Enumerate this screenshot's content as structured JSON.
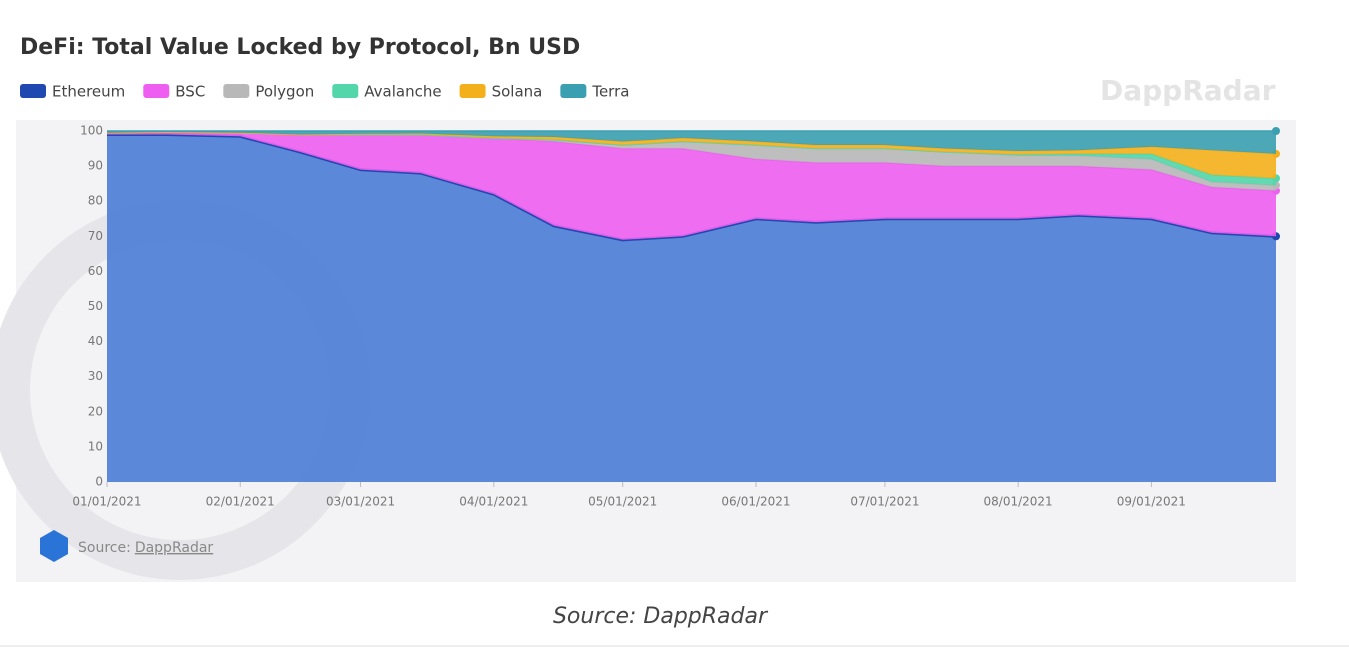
{
  "chart_data": {
    "type": "stacked_area",
    "title": "DeFi: Total Value Locked by Protocol, Bn USD",
    "x": [
      "01/01/2021",
      "01/15/2021",
      "02/01/2021",
      "02/15/2021",
      "03/01/2021",
      "03/15/2021",
      "04/01/2021",
      "04/15/2021",
      "05/01/2021",
      "05/15/2021",
      "06/01/2021",
      "06/15/2021",
      "07/01/2021",
      "07/15/2021",
      "08/01/2021",
      "08/15/2021",
      "09/01/2021",
      "09/15/2021",
      "09/30/2021"
    ],
    "series": [
      {
        "name": "Ethereum",
        "color": "#1f48b0",
        "values": [
          99,
          99,
          98.5,
          94,
          89,
          88,
          82,
          73,
          69,
          70,
          75,
          74,
          75,
          75,
          75,
          76,
          75,
          71,
          70
        ]
      },
      {
        "name": "BSC",
        "color": "#ee5ef0",
        "values": [
          0.5,
          0.7,
          1,
          5,
          10,
          11,
          16,
          24,
          26,
          25,
          17,
          17,
          16,
          15,
          15,
          14,
          14,
          13,
          13
        ]
      },
      {
        "name": "Polygon",
        "color": "#b8b8b8",
        "values": [
          0,
          0,
          0,
          0,
          0,
          0,
          0,
          0.5,
          1,
          2,
          4,
          4,
          4,
          4,
          3,
          3,
          3,
          1.5,
          1.5
        ]
      },
      {
        "name": "Avalanche",
        "color": "#52d6aa",
        "values": [
          0,
          0,
          0,
          0,
          0,
          0,
          0,
          0,
          0,
          0,
          0,
          0,
          0,
          0,
          0.3,
          0.5,
          1.5,
          2,
          2
        ]
      },
      {
        "name": "Solana",
        "color": "#f4b01a",
        "values": [
          0,
          0,
          0,
          0,
          0.2,
          0.3,
          0.5,
          0.8,
          1,
          1,
          1,
          1,
          1,
          1,
          1,
          1,
          2,
          7,
          7
        ]
      },
      {
        "name": "Terra",
        "color": "#3a9fb0",
        "values": [
          0.5,
          0.3,
          0.5,
          1,
          0.8,
          0.7,
          1.5,
          1.7,
          3,
          2,
          3,
          4,
          4,
          5,
          5.7,
          5.5,
          4.5,
          5.5,
          6.5
        ]
      }
    ],
    "xlim": [
      "01/01/2021",
      "09/30/2021"
    ],
    "xticks": [
      "01/01/2021",
      "02/01/2021",
      "03/01/2021",
      "04/01/2021",
      "05/01/2021",
      "06/01/2021",
      "07/01/2021",
      "08/01/2021",
      "09/01/2021"
    ],
    "ylim": [
      0,
      100
    ],
    "yticks": [
      0,
      10,
      20,
      30,
      40,
      50,
      60,
      70,
      80,
      90,
      100
    ],
    "grid": false,
    "legend": "top-left"
  },
  "footer": {
    "source_label": "Source:",
    "source_link": "DappRadar",
    "watermark": "DappRadar",
    "caption": "Source: DappRadar"
  }
}
